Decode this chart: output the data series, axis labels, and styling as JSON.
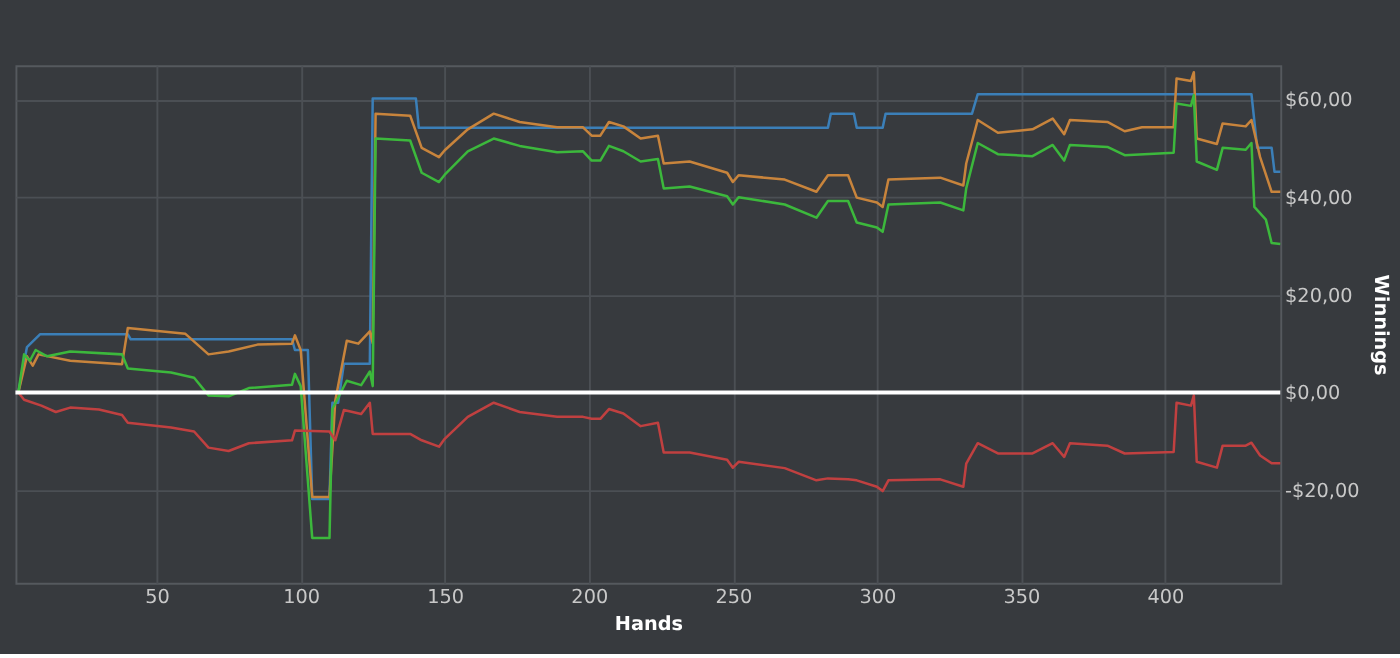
{
  "chart_data": {
    "type": "line",
    "xlabel": "Hands",
    "ylabel": "Winnings",
    "xlim": [
      1,
      440
    ],
    "ylim": [
      -39,
      67
    ],
    "xticks": [
      50,
      100,
      150,
      200,
      250,
      300,
      350,
      400
    ],
    "yticks": [
      {
        "value": -20,
        "label": "-$20,00"
      },
      {
        "value": 0,
        "label": "$0,00"
      },
      {
        "value": 20,
        "label": "$20,00"
      },
      {
        "value": 40,
        "label": "$40,00"
      },
      {
        "value": 60,
        "label": "$60,00"
      }
    ],
    "grid": true,
    "legend": false,
    "line_style": "solid",
    "marker": "none",
    "ref_lines": [
      {
        "axis": "y",
        "value": 0,
        "color": "#ffffff"
      }
    ],
    "series": [
      {
        "color": "#3b7fb8",
        "x": [
          2,
          5,
          9.5,
          40,
          41,
          97,
          98,
          102.5,
          104,
          110,
          111,
          113,
          115,
          124,
          125,
          140,
          141,
          283,
          284,
          292,
          293,
          302,
          303,
          333,
          335,
          430,
          432,
          437,
          438,
          440
        ],
        "values": [
          0,
          9.3,
          11.9,
          11.9,
          10.9,
          10.9,
          8.7,
          8.7,
          -21.8,
          -21.8,
          -2.1,
          -2.1,
          5.9,
          5.9,
          60.2,
          60.2,
          54.2,
          54.2,
          57.1,
          57.1,
          54.2,
          54.2,
          57.1,
          57.1,
          61.1,
          61.1,
          50.1,
          50.1,
          45.2,
          45.2
        ]
      },
      {
        "color": "#c8843c",
        "x": [
          2,
          5,
          7,
          9,
          20,
          38,
          40,
          60,
          68,
          75,
          85,
          97,
          98,
          100,
          104,
          110,
          112,
          116,
          120,
          124,
          125,
          126,
          138,
          142,
          148,
          150,
          158,
          167,
          176,
          189,
          198,
          201,
          204,
          207,
          212,
          218,
          224,
          226,
          235,
          248,
          250,
          252,
          268,
          279,
          283,
          290,
          293,
          300,
          302,
          304,
          322,
          330,
          331,
          335,
          342,
          354,
          361,
          365,
          367,
          380,
          386,
          392,
          403,
          404,
          409,
          410,
          411,
          418,
          420,
          428,
          430,
          433,
          437,
          440
        ],
        "values": [
          0,
          7.4,
          5.5,
          7.8,
          6.5,
          5.8,
          13.2,
          12.0,
          7.8,
          8.4,
          9.8,
          10.0,
          11.7,
          8.7,
          -21.4,
          -21.4,
          -1.7,
          10.6,
          10.0,
          12.5,
          10.1,
          57.1,
          56.7,
          50.1,
          48.2,
          49.6,
          53.9,
          57.1,
          55.4,
          54.3,
          54.3,
          52.6,
          52.6,
          55.4,
          54.5,
          52.0,
          52.6,
          46.9,
          47.3,
          45.0,
          43.1,
          44.5,
          43.6,
          41.1,
          44.5,
          44.5,
          39.9,
          38.9,
          38.0,
          43.6,
          44.0,
          42.4,
          46.9,
          55.8,
          53.2,
          53.9,
          56.1,
          52.9,
          55.8,
          55.4,
          53.5,
          54.3,
          54.3,
          64.3,
          63.8,
          65.6,
          52.0,
          50.9,
          55.1,
          54.5,
          55.8,
          48.2,
          41.1,
          41.1
        ]
      },
      {
        "color": "#3cb83c",
        "x": [
          2,
          4,
          6,
          8,
          12,
          20,
          38,
          40,
          55,
          63,
          68,
          75,
          82,
          97,
          98,
          100,
          104,
          110,
          111,
          116,
          121,
          124,
          125,
          126,
          138,
          142,
          148,
          150,
          158,
          167,
          176,
          189,
          198,
          201,
          204,
          207,
          212,
          218,
          224,
          226,
          235,
          248,
          250,
          252,
          268,
          279,
          283,
          290,
          293,
          300,
          302,
          304,
          322,
          330,
          331,
          335,
          342,
          354,
          361,
          365,
          367,
          380,
          386,
          403,
          404,
          409,
          410,
          411,
          418,
          420,
          428,
          430,
          431,
          435,
          437,
          440
        ],
        "values": [
          0,
          7.8,
          6.5,
          8.7,
          7.4,
          8.4,
          7.8,
          4.9,
          4.1,
          3.0,
          -0.6,
          -0.8,
          0.9,
          1.6,
          3.8,
          1.3,
          -29.8,
          -29.8,
          -3.4,
          2.4,
          1.5,
          4.3,
          1.3,
          52.0,
          51.6,
          45.0,
          43.1,
          44.6,
          49.4,
          52.0,
          50.5,
          49.2,
          49.4,
          47.5,
          47.5,
          50.5,
          49.4,
          47.3,
          47.8,
          41.8,
          42.2,
          40.2,
          38.5,
          40.0,
          38.5,
          35.8,
          39.2,
          39.2,
          34.8,
          33.8,
          32.9,
          38.5,
          38.9,
          37.3,
          41.8,
          51.1,
          48.8,
          48.4,
          50.7,
          47.5,
          50.7,
          50.3,
          48.6,
          49.1,
          59.2,
          58.7,
          60.9,
          47.3,
          45.6,
          50.1,
          49.7,
          51.1,
          38.0,
          35.4,
          30.6,
          30.4
        ]
      },
      {
        "color": "#c04040",
        "x": [
          2,
          4,
          10,
          15,
          20,
          30,
          38,
          40,
          55,
          63,
          68,
          75,
          82,
          97,
          98,
          110,
          112,
          115,
          121,
          124,
          125,
          138,
          142,
          148,
          150,
          158,
          167,
          176,
          189,
          198,
          201,
          204,
          207,
          212,
          218,
          224,
          226,
          235,
          248,
          250,
          252,
          268,
          279,
          283,
          290,
          293,
          300,
          302,
          304,
          322,
          330,
          331,
          335,
          342,
          354,
          361,
          365,
          367,
          380,
          386,
          403,
          404,
          409,
          410,
          411,
          418,
          420,
          428,
          430,
          433,
          437,
          440
        ],
        "values": [
          0,
          -1.5,
          -2.7,
          -4.0,
          -3.1,
          -3.5,
          -4.6,
          -6.2,
          -7.2,
          -8.0,
          -11.3,
          -12.0,
          -10.4,
          -9.8,
          -7.8,
          -8.0,
          -9.8,
          -3.6,
          -4.4,
          -2.1,
          -8.5,
          -8.5,
          -9.8,
          -11.1,
          -9.5,
          -5.0,
          -2.1,
          -4.0,
          -5.0,
          -5.0,
          -5.4,
          -5.4,
          -3.4,
          -4.3,
          -6.9,
          -6.2,
          -12.3,
          -12.3,
          -13.8,
          -15.4,
          -14.2,
          -15.5,
          -18.0,
          -17.6,
          -17.8,
          -18.0,
          -19.3,
          -20.2,
          -18.0,
          -17.8,
          -19.3,
          -14.6,
          -10.4,
          -12.5,
          -12.5,
          -10.4,
          -13.2,
          -10.4,
          -10.9,
          -12.5,
          -12.2,
          -2.1,
          -2.7,
          -0.6,
          -14.2,
          -15.4,
          -10.9,
          -10.9,
          -10.3,
          -12.9,
          -14.5,
          -14.5
        ]
      }
    ]
  }
}
